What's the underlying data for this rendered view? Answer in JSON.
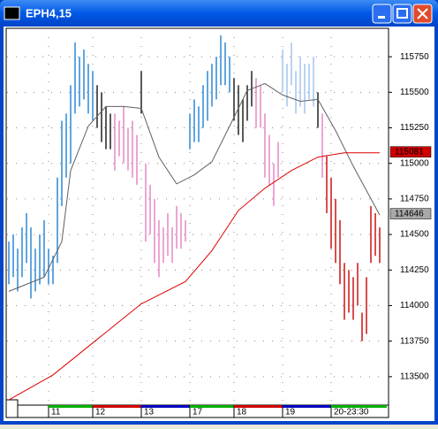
{
  "chart_data": {
    "type": "ohlc",
    "title": "EPH4,15",
    "xlim": [
      -0.4,
      85.6
    ],
    "ylim": [
      113300,
      115950
    ],
    "yticks": [
      113500,
      113750,
      114000,
      114250,
      114500,
      114750,
      115000,
      115250,
      115500,
      115750
    ],
    "xticks": [
      {
        "value": 9,
        "label": "11"
      },
      {
        "value": 19,
        "label": "12"
      },
      {
        "value": 30,
        "label": "13"
      },
      {
        "value": 41,
        "label": "17"
      },
      {
        "value": 51,
        "label": "18"
      },
      {
        "value": 62,
        "label": "19"
      },
      {
        "value": 73,
        "label": "20-23:30"
      }
    ],
    "grid": true,
    "series": [
      {
        "color": "#3a8fd8",
        "x": [
          0,
          1,
          2,
          3,
          4,
          5,
          6,
          7,
          8,
          9,
          10,
          11,
          12,
          13,
          14,
          15,
          16,
          17,
          18,
          19
        ],
        "high": [
          114450,
          114500,
          114400,
          114550,
          114650,
          114550,
          114400,
          114500,
          114600,
          114400,
          114350,
          114900,
          115300,
          115350,
          115550,
          115850,
          115750,
          115800,
          115700,
          115650
        ],
        "low": [
          114150,
          114200,
          114100,
          114200,
          114300,
          114050,
          114100,
          114150,
          114200,
          114150,
          114150,
          114300,
          114700,
          114900,
          115000,
          115350,
          115400,
          115450,
          115350,
          115300
        ]
      },
      {
        "color": "#303030",
        "x": [
          20,
          21,
          22,
          23,
          30
        ],
        "high": [
          115550,
          115500,
          115400,
          115350,
          115650
        ],
        "low": [
          115250,
          115150,
          115100,
          115100,
          115350
        ]
      },
      {
        "color": "#e890c8",
        "x": [
          24,
          25,
          26,
          27,
          28,
          29,
          31,
          32,
          33,
          34,
          35,
          36,
          37,
          38,
          39,
          40
        ],
        "high": [
          115350,
          115300,
          115400,
          115250,
          115300,
          115200,
          115000,
          114850,
          114750,
          114600,
          114550,
          114650,
          114550,
          114700,
          114650,
          114600
        ],
        "low": [
          114950,
          115050,
          115000,
          114950,
          114900,
          114850,
          114450,
          114500,
          114300,
          114200,
          114300,
          114350,
          114300,
          114400,
          114400,
          114450
        ]
      },
      {
        "color": "#3a8fd8",
        "x": [
          41,
          42,
          43,
          44,
          45,
          46,
          47,
          48,
          49,
          50
        ],
        "high": [
          115350,
          115450,
          115400,
          115550,
          115650,
          115700,
          115750,
          115900,
          115850,
          115750
        ],
        "low": [
          115100,
          115150,
          115150,
          115250,
          115300,
          115400,
          115450,
          115550,
          115550,
          115500
        ]
      },
      {
        "color": "#303030",
        "x": [
          51,
          52,
          53,
          54,
          55,
          70
        ],
        "high": [
          115600,
          115550,
          115450,
          115550,
          115650,
          115500
        ],
        "low": [
          115300,
          115200,
          115150,
          115300,
          115400,
          115250
        ]
      },
      {
        "color": "#e890c8",
        "x": [
          56,
          57,
          58,
          59,
          60,
          61,
          71
        ],
        "high": [
          115600,
          115550,
          115350,
          115200,
          115000,
          115150,
          115350
        ],
        "low": [
          115250,
          115250,
          114900,
          114850,
          114700,
          114900,
          114900
        ]
      },
      {
        "color": "#a8c8f0",
        "x": [
          62,
          63,
          64,
          65,
          66,
          67,
          68,
          69
        ],
        "high": [
          115800,
          115700,
          115850,
          115650,
          115750,
          115700,
          115700,
          115750
        ],
        "low": [
          115500,
          115400,
          115550,
          115350,
          115400,
          115350,
          115450,
          115400
        ]
      },
      {
        "color": "#d02020",
        "x": [
          72,
          73,
          74,
          75,
          76,
          77,
          78,
          79,
          80,
          81,
          82,
          83,
          84
        ],
        "high": [
          115050,
          114900,
          114750,
          114600,
          114300,
          114250,
          114200,
          114300,
          113950,
          114200,
          114700,
          114650,
          114550
        ],
        "low": [
          114650,
          114400,
          114300,
          114150,
          113900,
          113950,
          113900,
          114000,
          113750,
          113800,
          114300,
          114350,
          114300
        ]
      }
    ],
    "lines": [
      {
        "color": "#606060",
        "x": [
          0,
          4,
          8,
          12,
          14,
          18,
          22,
          26,
          30,
          34,
          38,
          42,
          46,
          50,
          54,
          58,
          62,
          66,
          70,
          74,
          78,
          84
        ],
        "values": [
          114100,
          114150,
          114200,
          114450,
          114950,
          115262,
          115400,
          115400,
          115387,
          115044,
          114856,
          114919,
          115012,
          115262,
          115512,
          115562,
          115481,
          115437,
          115450,
          115231,
          114981,
          114637
        ]
      },
      {
        "color": "#e00000",
        "x": [
          0,
          10,
          20,
          30,
          40,
          46,
          52,
          58,
          64,
          70,
          76,
          84
        ],
        "values": [
          113337,
          113512,
          113762,
          114012,
          114169,
          114387,
          114669,
          114825,
          114950,
          115044,
          115075,
          115075
        ]
      }
    ],
    "price_markers": [
      {
        "value": 115081,
        "color": "#d00000"
      },
      {
        "value": 114646,
        "color": "#a8a8a8"
      }
    ]
  }
}
